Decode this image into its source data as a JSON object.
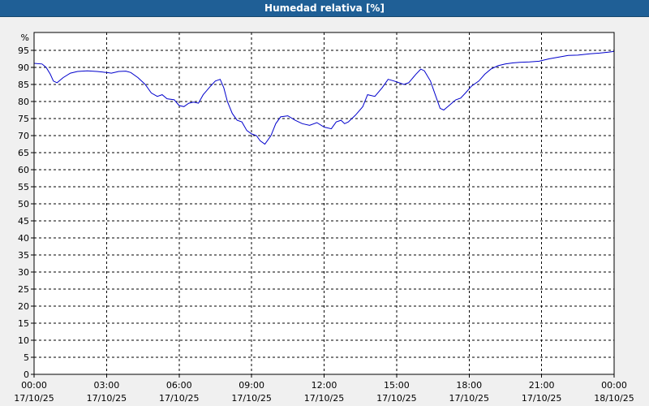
{
  "window": {
    "title": "Humedad relativa [%]"
  },
  "colors": {
    "title_bar": "#1f5f96",
    "series": "#0000cc",
    "grid": "#000000",
    "plot_bg": "#ffffff",
    "page_bg": "#f0f0f0"
  },
  "chart_data": {
    "type": "line",
    "title": "Humedad relativa [%]",
    "ylabel": "%",
    "xlabel": "",
    "ylim": [
      0,
      95
    ],
    "yticks": [
      0,
      5,
      10,
      15,
      20,
      25,
      30,
      35,
      40,
      45,
      50,
      55,
      60,
      65,
      70,
      75,
      80,
      85,
      90,
      95
    ],
    "xlim_hours": [
      0,
      24
    ],
    "xticks": [
      {
        "hour": 0,
        "time": "00:00",
        "date": "17/10/25"
      },
      {
        "hour": 3,
        "time": "03:00",
        "date": "17/10/25"
      },
      {
        "hour": 6,
        "time": "06:00",
        "date": "17/10/25"
      },
      {
        "hour": 9,
        "time": "09:00",
        "date": "17/10/25"
      },
      {
        "hour": 12,
        "time": "12:00",
        "date": "17/10/25"
      },
      {
        "hour": 15,
        "time": "15:00",
        "date": "17/10/25"
      },
      {
        "hour": 18,
        "time": "18:00",
        "date": "17/10/25"
      },
      {
        "hour": 21,
        "time": "21:00",
        "date": "17/10/25"
      },
      {
        "hour": 24,
        "time": "00:00",
        "date": "18/10/25"
      }
    ],
    "grid": true,
    "series": [
      {
        "values": [
          [
            0.0,
            91.2
          ],
          [
            0.33,
            91.0
          ],
          [
            0.5,
            90.0
          ],
          [
            0.67,
            88.0
          ],
          [
            0.8,
            86.0
          ],
          [
            0.95,
            85.5
          ],
          [
            1.2,
            87.0
          ],
          [
            1.5,
            88.3
          ],
          [
            1.8,
            88.8
          ],
          [
            2.2,
            89.0
          ],
          [
            2.6,
            88.8
          ],
          [
            3.0,
            88.5
          ],
          [
            3.2,
            88.3
          ],
          [
            3.5,
            88.8
          ],
          [
            3.8,
            88.9
          ],
          [
            4.0,
            88.5
          ],
          [
            4.3,
            87.0
          ],
          [
            4.6,
            85.0
          ],
          [
            4.85,
            82.5
          ],
          [
            5.1,
            81.5
          ],
          [
            5.3,
            82.0
          ],
          [
            5.5,
            80.8
          ],
          [
            5.8,
            80.5
          ],
          [
            6.0,
            78.8
          ],
          [
            6.2,
            78.5
          ],
          [
            6.4,
            79.5
          ],
          [
            6.6,
            79.8
          ],
          [
            6.8,
            79.5
          ],
          [
            7.0,
            82.0
          ],
          [
            7.3,
            84.5
          ],
          [
            7.5,
            86.0
          ],
          [
            7.7,
            86.5
          ],
          [
            7.85,
            84.0
          ],
          [
            8.0,
            80.0
          ],
          [
            8.2,
            76.5
          ],
          [
            8.4,
            74.5
          ],
          [
            8.6,
            74.0
          ],
          [
            8.8,
            71.5
          ],
          [
            9.0,
            70.5
          ],
          [
            9.2,
            70.0
          ],
          [
            9.35,
            68.5
          ],
          [
            9.55,
            67.5
          ],
          [
            9.8,
            70.0
          ],
          [
            10.0,
            73.5
          ],
          [
            10.2,
            75.5
          ],
          [
            10.5,
            75.8
          ],
          [
            10.8,
            74.5
          ],
          [
            11.1,
            73.5
          ],
          [
            11.4,
            73.0
          ],
          [
            11.7,
            73.8
          ],
          [
            12.0,
            72.5
          ],
          [
            12.3,
            72.0
          ],
          [
            12.5,
            74.0
          ],
          [
            12.7,
            74.5
          ],
          [
            12.85,
            73.5
          ],
          [
            13.0,
            74.0
          ],
          [
            13.3,
            76.0
          ],
          [
            13.6,
            78.5
          ],
          [
            13.8,
            82.0
          ],
          [
            14.1,
            81.5
          ],
          [
            14.4,
            84.0
          ],
          [
            14.65,
            86.5
          ],
          [
            14.9,
            86.0
          ],
          [
            15.1,
            85.5
          ],
          [
            15.3,
            85.0
          ],
          [
            15.5,
            85.5
          ],
          [
            15.8,
            88.0
          ],
          [
            16.0,
            89.5
          ],
          [
            16.15,
            89.0
          ],
          [
            16.4,
            86.0
          ],
          [
            16.6,
            82.0
          ],
          [
            16.8,
            78.0
          ],
          [
            16.95,
            77.5
          ],
          [
            17.2,
            79.0
          ],
          [
            17.45,
            80.5
          ],
          [
            17.65,
            81.0
          ],
          [
            17.85,
            82.5
          ],
          [
            18.1,
            84.5
          ],
          [
            18.4,
            86.0
          ],
          [
            18.65,
            88.0
          ],
          [
            18.9,
            89.5
          ],
          [
            19.2,
            90.5
          ],
          [
            19.5,
            91.0
          ],
          [
            19.8,
            91.3
          ],
          [
            20.1,
            91.5
          ],
          [
            20.5,
            91.6
          ],
          [
            20.9,
            91.8
          ],
          [
            21.3,
            92.5
          ],
          [
            21.7,
            93.0
          ],
          [
            22.1,
            93.5
          ],
          [
            22.5,
            93.6
          ],
          [
            23.0,
            94.0
          ],
          [
            23.4,
            94.2
          ],
          [
            23.8,
            94.5
          ],
          [
            24.0,
            94.7
          ]
        ]
      }
    ]
  }
}
